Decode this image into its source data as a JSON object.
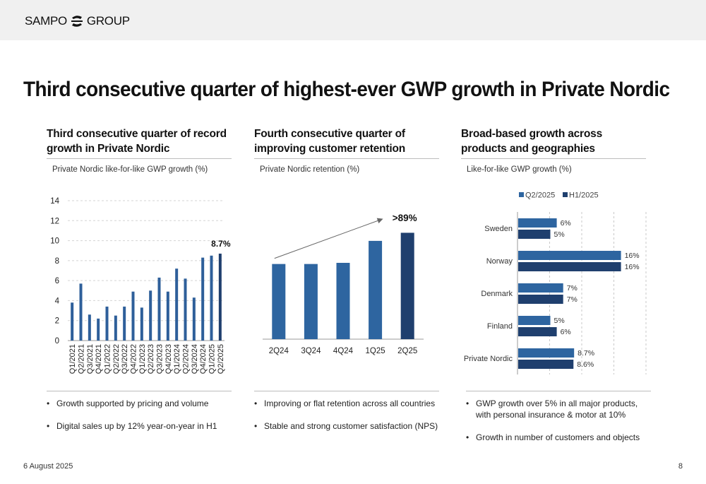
{
  "header": {
    "logo_left": "SAMPO",
    "logo_right": "GROUP"
  },
  "title": "Third consecutive quarter of highest-ever GWP growth in Private Nordic",
  "panels": [
    {
      "heading": "Third consecutive quarter of record growth in Private Nordic",
      "subtitle": "Private Nordic like-for-like GWP growth (%)",
      "bullets": [
        "Growth supported by pricing and volume",
        "Digital sales up by 12% year-on-year in H1"
      ]
    },
    {
      "heading": "Fourth consecutive quarter of improving customer retention",
      "subtitle": "Private Nordic retention (%)",
      "bullets": [
        "Improving or flat retention across all countries",
        "Stable and strong customer satisfaction (NPS)"
      ]
    },
    {
      "heading": "Broad-based growth across products and geographies",
      "subtitle": "Like-for-like GWP growth (%)",
      "bullets": [
        "GWP growth over 5% in all major products, with personal insurance & motor at 10%",
        "Growth in number of customers and objects"
      ]
    }
  ],
  "chart_data": [
    {
      "type": "bar",
      "categories": [
        "Q1/2021",
        "Q2/2021",
        "Q3/2021",
        "Q4/2021",
        "Q1/2022",
        "Q2/2022",
        "Q3/2022",
        "Q4/2022",
        "Q1/2023",
        "Q2/2023",
        "Q3/2023",
        "Q4/2023",
        "Q1/2024",
        "Q2/2024",
        "Q3/2024",
        "Q4/2024",
        "Q1/2025",
        "Q2/2025"
      ],
      "values": [
        3.8,
        5.7,
        2.6,
        2.2,
        3.4,
        2.5,
        3.4,
        4.9,
        3.3,
        5.0,
        6.3,
        4.9,
        7.2,
        6.2,
        4.3,
        8.3,
        8.5,
        8.7
      ],
      "ylim": [
        0,
        14
      ],
      "yticks": [
        0,
        2,
        4,
        6,
        8,
        10,
        12,
        14
      ],
      "data_label": "8.7%",
      "colors": {
        "bar": "#2e5f9a",
        "highlight": "#1f3f6e",
        "grid": "#d4d4d4"
      }
    },
    {
      "type": "bar",
      "categories": [
        "2Q24",
        "3Q24",
        "4Q24",
        "1Q25",
        "2Q25"
      ],
      "values": [
        86.5,
        86.5,
        86.6,
        88.5,
        89.2
      ],
      "ylim": [
        80,
        91
      ],
      "annotation": ">89%",
      "colors": {
        "bar": "#2e65a0",
        "highlight": "#1f3f6e",
        "arrow": "#666666"
      }
    },
    {
      "type": "bar",
      "orientation": "horizontal",
      "categories": [
        "Sweden",
        "Norway",
        "Denmark",
        "Finland",
        "Private Nordic"
      ],
      "series": [
        {
          "name": "Q2/2025",
          "values": [
            6,
            16,
            7,
            5,
            8.7
          ],
          "labels": [
            "6%",
            "16%",
            "7%",
            "5%",
            "8.7%"
          ]
        },
        {
          "name": "H1/2025",
          "values": [
            5,
            16,
            7,
            6,
            8.6
          ],
          "labels": [
            "5%",
            "16%",
            "7%",
            "6%",
            "8.6%"
          ]
        }
      ],
      "xlim": [
        0,
        20
      ],
      "colors": {
        "Q2/2025": "#2e65a0",
        "H1/2025": "#1f3f6e",
        "grid": "#c8c8c8"
      }
    }
  ],
  "footer": {
    "date": "6 August 2025",
    "page": "8"
  }
}
